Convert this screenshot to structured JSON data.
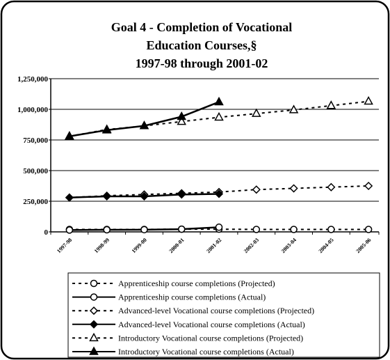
{
  "chart_data": {
    "type": "line",
    "title": [
      "Goal 4 - Completion of Vocational",
      "Education Courses,§",
      "1997-98 through 2001-02"
    ],
    "categories": [
      "1997-98",
      "1998-99",
      "1999-00",
      "2000-01",
      "2001-02",
      "2002-03",
      "2003-04",
      "2004-05",
      "2005-06"
    ],
    "ylim": [
      0,
      1250000
    ],
    "yticks": [
      {
        "value": 0,
        "label": "0"
      },
      {
        "value": 250000,
        "label": "250,000"
      },
      {
        "value": 500000,
        "label": "500,000"
      },
      {
        "value": 750000,
        "label": "750,000"
      },
      {
        "value": 1000000,
        "label": "1,000,000"
      },
      {
        "value": 1250000,
        "label": "1,250,000"
      }
    ],
    "grid": true,
    "legend": "bottom",
    "series": [
      {
        "name": "Apprenticeship course completions (Projected)",
        "color": "#000000",
        "marker": "circle",
        "filled": false,
        "dashed": true,
        "values": [
          20000,
          20000,
          20000,
          22000,
          22000,
          20000,
          20000,
          20000,
          20000
        ]
      },
      {
        "name": "Apprenticeship course completions (Actual)",
        "color": "#000000",
        "marker": "circle",
        "filled": false,
        "dashed": false,
        "values": [
          15000,
          17000,
          18000,
          22000,
          38000,
          null,
          null,
          null,
          null
        ]
      },
      {
        "name": "Advanced-level Vocational course completions (Projected)",
        "color": "#000000",
        "marker": "diamond",
        "filled": false,
        "dashed": true,
        "values": [
          280000,
          295000,
          305000,
          315000,
          325000,
          345000,
          355000,
          365000,
          375000
        ]
      },
      {
        "name": "Advanced-level Vocational course completions (Actual)",
        "color": "#000000",
        "marker": "diamond",
        "filled": true,
        "dashed": false,
        "values": [
          280000,
          290000,
          290000,
          305000,
          310000,
          null,
          null,
          null,
          null
        ]
      },
      {
        "name": "Introductory Vocational course completions (Projected)",
        "color": "#000000",
        "marker": "triangle",
        "filled": false,
        "dashed": true,
        "values": [
          780000,
          835000,
          865000,
          900000,
          935000,
          965000,
          995000,
          1030000,
          1065000
        ]
      },
      {
        "name": "Introductory Vocational course completions (Actual)",
        "color": "#000000",
        "marker": "triangle",
        "filled": true,
        "dashed": false,
        "values": [
          780000,
          830000,
          865000,
          940000,
          1060000,
          null,
          null,
          null,
          null
        ]
      }
    ]
  }
}
